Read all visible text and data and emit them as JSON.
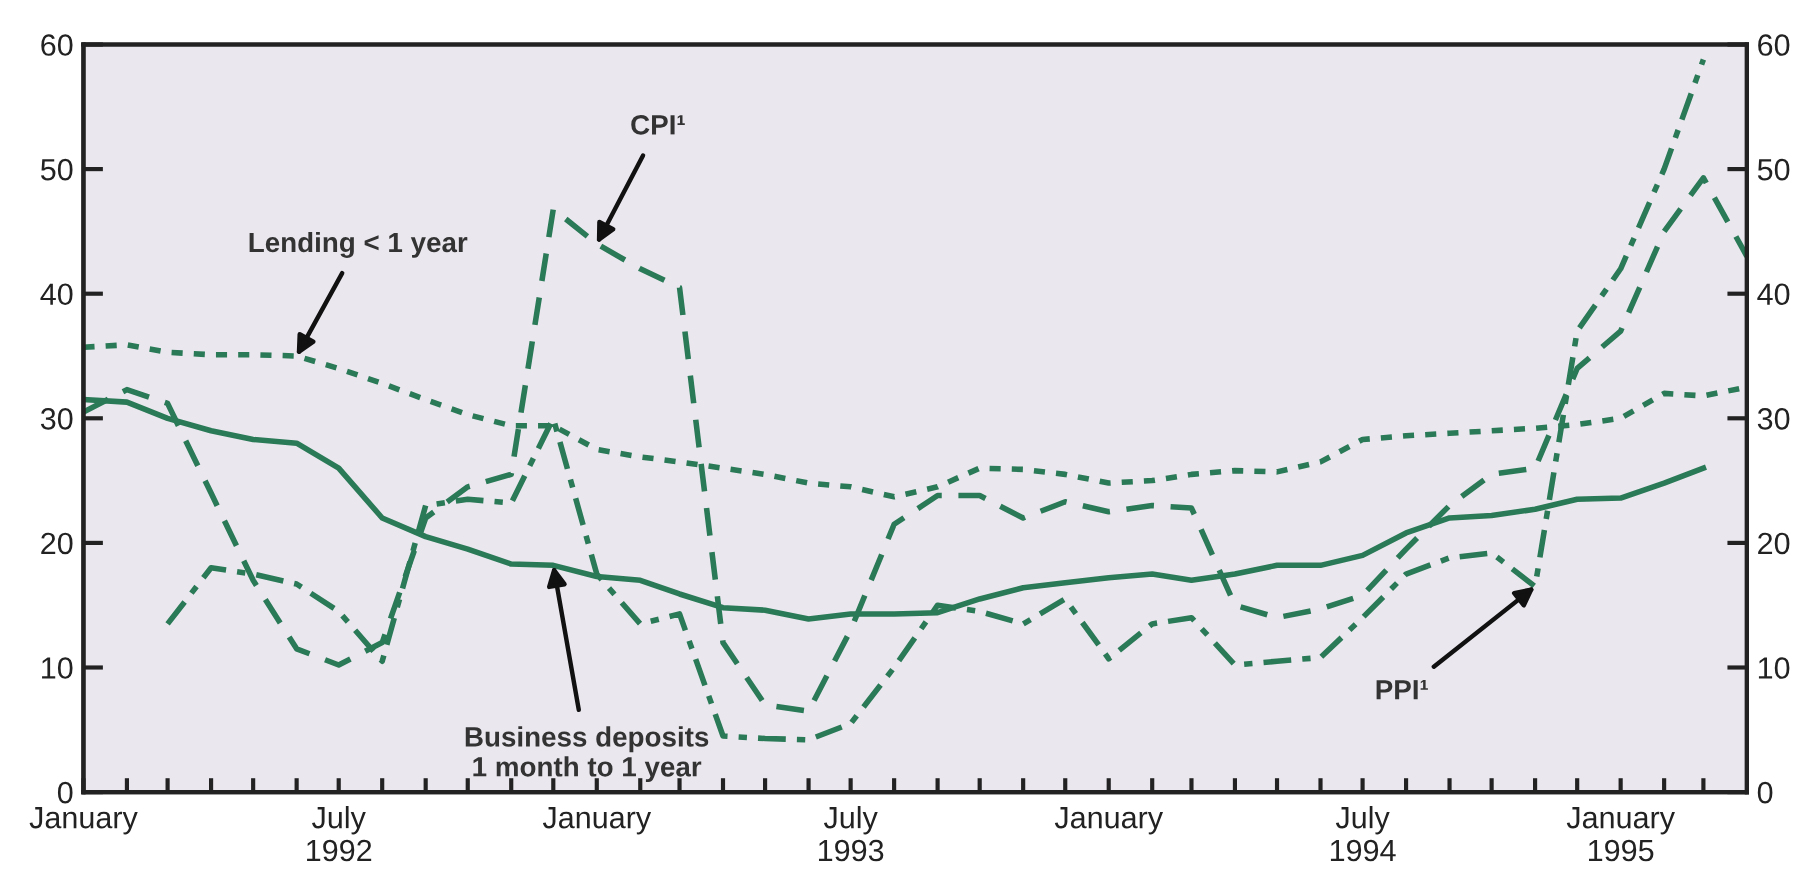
{
  "chart_data": {
    "type": "line",
    "x": [
      "1992-01",
      "1992-02",
      "1992-03",
      "1992-04",
      "1992-05",
      "1992-06",
      "1992-07",
      "1992-08",
      "1992-09",
      "1992-10",
      "1992-11",
      "1992-12",
      "1993-01",
      "1993-02",
      "1993-03",
      "1993-04",
      "1993-05",
      "1993-06",
      "1993-07",
      "1993-08",
      "1993-09",
      "1993-10",
      "1993-11",
      "1993-12",
      "1994-01",
      "1994-02",
      "1994-03",
      "1994-04",
      "1994-05",
      "1994-06",
      "1994-07",
      "1994-08",
      "1994-09",
      "1994-10",
      "1994-11",
      "1994-12",
      "1995-01",
      "1995-02",
      "1995-03",
      "1995-04"
    ],
    "series": [
      {
        "name": "Lending < 1 year",
        "color": "#2a7a57",
        "line_style": "dotted",
        "values": [
          35.7,
          35.9,
          35.3,
          35.1,
          35.1,
          35.0,
          34.0,
          32.8,
          31.5,
          30.3,
          29.4,
          29.4,
          27.5,
          26.9,
          26.5,
          26.0,
          25.5,
          24.8,
          24.5,
          23.7,
          24.5,
          26.0,
          25.9,
          25.5,
          24.8,
          25.0,
          25.5,
          25.8,
          25.7,
          26.5,
          28.3,
          28.6,
          28.8,
          29.0,
          29.2,
          29.5,
          30.0,
          32.0,
          31.8,
          32.5
        ]
      },
      {
        "name": "CPI¹",
        "color": "#2a7a57",
        "line_style": "dashed",
        "values": [
          30.5,
          32.3,
          31.2,
          24,
          17,
          11.5,
          10.2,
          12,
          22,
          24.5,
          25.5,
          46.8,
          44,
          42,
          40.5,
          12,
          7,
          6.5,
          13,
          21.5,
          23.8,
          23.8,
          22,
          23.3,
          22.5,
          23,
          22.8,
          15,
          14,
          14.7,
          15.8,
          19.5,
          23,
          25.5,
          26,
          34,
          37,
          45,
          49.3,
          43
        ]
      },
      {
        "name": "PPI¹",
        "color": "#2a7a57",
        "line_style": "dashdot",
        "values": [
          null,
          null,
          13.5,
          18,
          17.5,
          16.7,
          14.5,
          10.5,
          23,
          23.5,
          23.2,
          30,
          17.5,
          13.5,
          14.3,
          4.5,
          4.3,
          4.2,
          5.5,
          10,
          15,
          14.5,
          13.5,
          15.5,
          10.7,
          13.5,
          14,
          10.2,
          10.5,
          10.8,
          14,
          17.5,
          18.8,
          19.2,
          16.5,
          37,
          42,
          50,
          58.8,
          null
        ]
      },
      {
        "name": "Business deposits\n1 month to 1 year",
        "color": "#2a7a57",
        "line_style": "solid",
        "values": [
          31.5,
          31.3,
          30,
          29,
          28.3,
          28,
          26,
          22,
          20.5,
          19.5,
          18.3,
          18.2,
          17.3,
          17,
          15.9,
          14.8,
          14.6,
          13.9,
          14.3,
          14.3,
          14.4,
          15.5,
          16.4,
          16.8,
          17.2,
          17.5,
          17,
          17.5,
          18.2,
          18.2,
          19,
          20.8,
          22,
          22.2,
          22.7,
          23.5,
          23.6,
          24.8,
          26,
          null
        ]
      }
    ],
    "xlim": [
      "1992-01",
      "1995-04"
    ],
    "xticks": [
      {
        "value": "1992-01",
        "label": "January"
      },
      {
        "value": "1992-02",
        "label": null
      },
      {
        "value": "1992-03",
        "label": null
      },
      {
        "value": "1992-04",
        "label": null
      },
      {
        "value": "1992-05",
        "label": null
      },
      {
        "value": "1992-06",
        "label": null
      },
      {
        "value": "1992-07",
        "label": "July\n1992"
      },
      {
        "value": "1992-08",
        "label": null
      },
      {
        "value": "1992-09",
        "label": null
      },
      {
        "value": "1992-10",
        "label": null
      },
      {
        "value": "1992-11",
        "label": null
      },
      {
        "value": "1992-12",
        "label": null
      },
      {
        "value": "1993-01",
        "label": "January"
      },
      {
        "value": "1993-02",
        "label": null
      },
      {
        "value": "1993-03",
        "label": null
      },
      {
        "value": "1993-04",
        "label": null
      },
      {
        "value": "1993-05",
        "label": null
      },
      {
        "value": "1993-06",
        "label": null
      },
      {
        "value": "1993-07",
        "label": "July\n1993"
      },
      {
        "value": "1993-08",
        "label": null
      },
      {
        "value": "1993-09",
        "label": null
      },
      {
        "value": "1993-10",
        "label": null
      },
      {
        "value": "1993-11",
        "label": null
      },
      {
        "value": "1993-12",
        "label": null
      },
      {
        "value": "1994-01",
        "label": "January"
      },
      {
        "value": "1994-02",
        "label": null
      },
      {
        "value": "1994-03",
        "label": null
      },
      {
        "value": "1994-04",
        "label": null
      },
      {
        "value": "1994-05",
        "label": null
      },
      {
        "value": "1994-06",
        "label": null
      },
      {
        "value": "1994-07",
        "label": "July\n1994"
      },
      {
        "value": "1994-08",
        "label": null
      },
      {
        "value": "1994-09",
        "label": null
      },
      {
        "value": "1994-10",
        "label": null
      },
      {
        "value": "1994-11",
        "label": null
      },
      {
        "value": "1994-12",
        "label": null
      },
      {
        "value": "1995-01",
        "label": "January\n1995"
      },
      {
        "value": "1995-02",
        "label": null
      },
      {
        "value": "1995-03",
        "label": null
      }
    ],
    "ylim": [
      0,
      60
    ],
    "yticks": [
      0,
      10,
      20,
      30,
      40,
      50,
      60
    ],
    "y2lim": [
      0,
      60
    ],
    "y2ticks": [
      0,
      10,
      20,
      30,
      40,
      50,
      60
    ],
    "grid": false,
    "legend": false,
    "marker": "none"
  }
}
